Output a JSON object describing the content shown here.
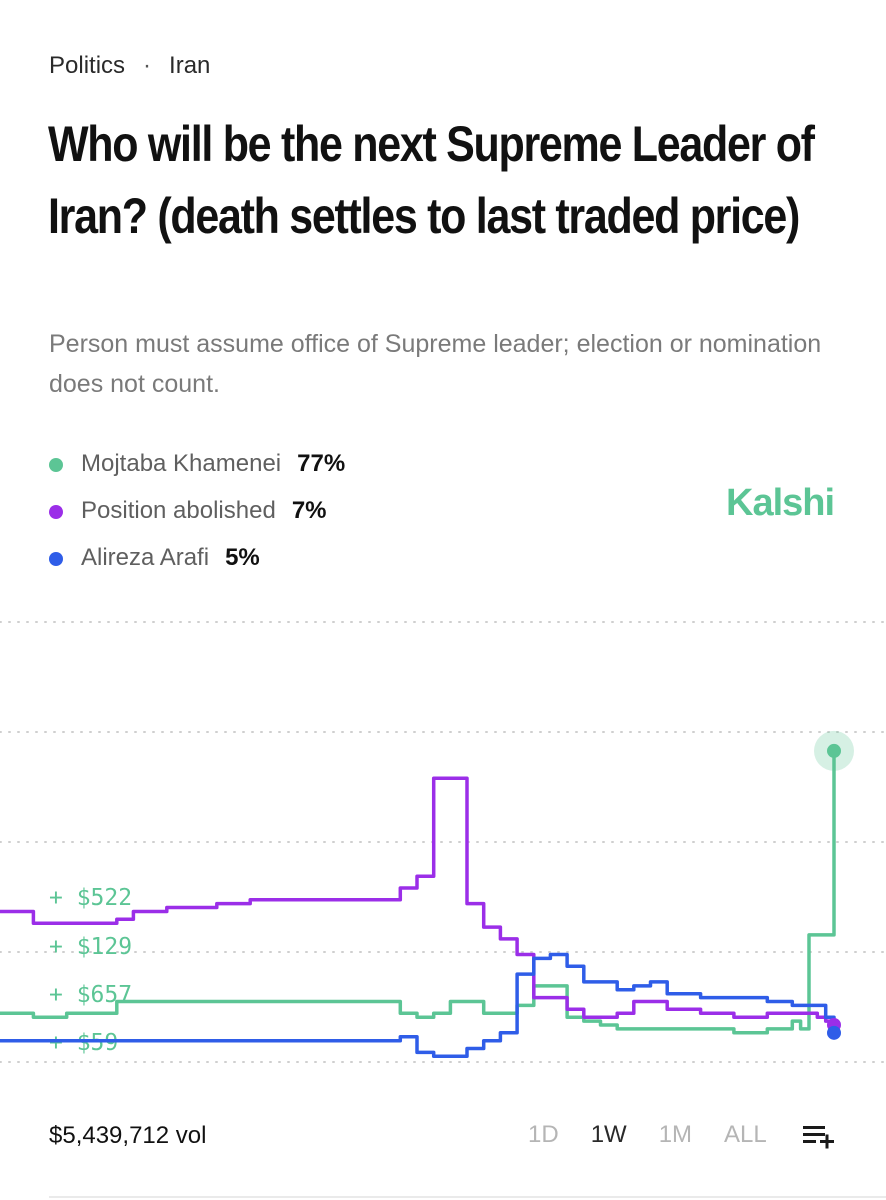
{
  "breadcrumb": {
    "category": "Politics",
    "separator": "·",
    "subcategory": "Iran"
  },
  "title": "Who will be the next Supreme Leader of Iran? (death settles to last traded price)",
  "subtitle": "Person must assume office of Supreme leader; election or nomination does not count.",
  "legend": [
    {
      "name": "Mojtaba Khamenei",
      "pct": "77%",
      "color": "#5cc595"
    },
    {
      "name": "Position abolished",
      "pct": "7%",
      "color": "#9b2ee8"
    },
    {
      "name": "Alireza Arafi",
      "pct": "5%",
      "color": "#2f5de8"
    }
  ],
  "brand": "Kalshi",
  "footer": {
    "volume": "$5,439,712 vol",
    "ranges": [
      "1D",
      "1W",
      "1M",
      "ALL"
    ],
    "active_range": "1W",
    "list_icon": "add-to-list-icon"
  },
  "chart_data": {
    "type": "line",
    "x": [
      0,
      2,
      4,
      6,
      8,
      10,
      12,
      14,
      16,
      18,
      20,
      22,
      24,
      26,
      28,
      30,
      32,
      34,
      36,
      38,
      40,
      42,
      44,
      46,
      48,
      50,
      52,
      54,
      56,
      58,
      60,
      62,
      64,
      66,
      68,
      70,
      72,
      74,
      76,
      78,
      80,
      82,
      84,
      86,
      88,
      90,
      92,
      94,
      95,
      96,
      97,
      98,
      99,
      100
    ],
    "grid": true,
    "trade_annotations": [
      "+ $522",
      "+ $129",
      "+ $657",
      "+ $59"
    ],
    "series": [
      {
        "name": "Mojtaba Khamenei",
        "color": "#5cc595",
        "values": [
          10,
          10,
          9,
          9,
          10,
          10,
          10,
          13,
          13,
          13,
          13,
          13,
          13,
          13,
          13,
          13,
          13,
          13,
          13,
          13,
          13,
          13,
          13,
          13,
          10,
          9,
          10,
          13,
          13,
          10,
          10,
          12,
          17,
          17,
          9,
          8,
          7,
          6,
          6,
          6,
          6,
          6,
          6,
          6,
          5,
          5,
          6,
          6,
          8,
          6,
          30,
          30,
          30,
          77
        ]
      },
      {
        "name": "Position abolished",
        "color": "#9b2ee8",
        "values": [
          36,
          36,
          33,
          33,
          33,
          33,
          33,
          34,
          36,
          36,
          37,
          37,
          37,
          38,
          38,
          39,
          39,
          39,
          39,
          39,
          39,
          39,
          39,
          39,
          42,
          45,
          70,
          70,
          38,
          32,
          29,
          25,
          14,
          14,
          11,
          9,
          9,
          10,
          13,
          13,
          11,
          11,
          10,
          10,
          9,
          9,
          10,
          10,
          10,
          10,
          10,
          9,
          8,
          7
        ]
      },
      {
        "name": "Alireza Arafi",
        "color": "#2f5de8",
        "values": [
          3,
          3,
          3,
          3,
          3,
          3,
          3,
          3,
          3,
          3,
          3,
          3,
          3,
          3,
          3,
          3,
          3,
          3,
          3,
          3,
          3,
          3,
          3,
          3,
          4,
          0,
          -1,
          -1,
          1,
          3,
          5,
          20,
          24,
          25,
          22,
          18,
          18,
          16,
          17,
          18,
          15,
          15,
          14,
          14,
          14,
          14,
          13,
          13,
          12,
          12,
          12,
          12,
          9,
          5
        ]
      }
    ],
    "ylim": [
      -5,
      90
    ]
  }
}
